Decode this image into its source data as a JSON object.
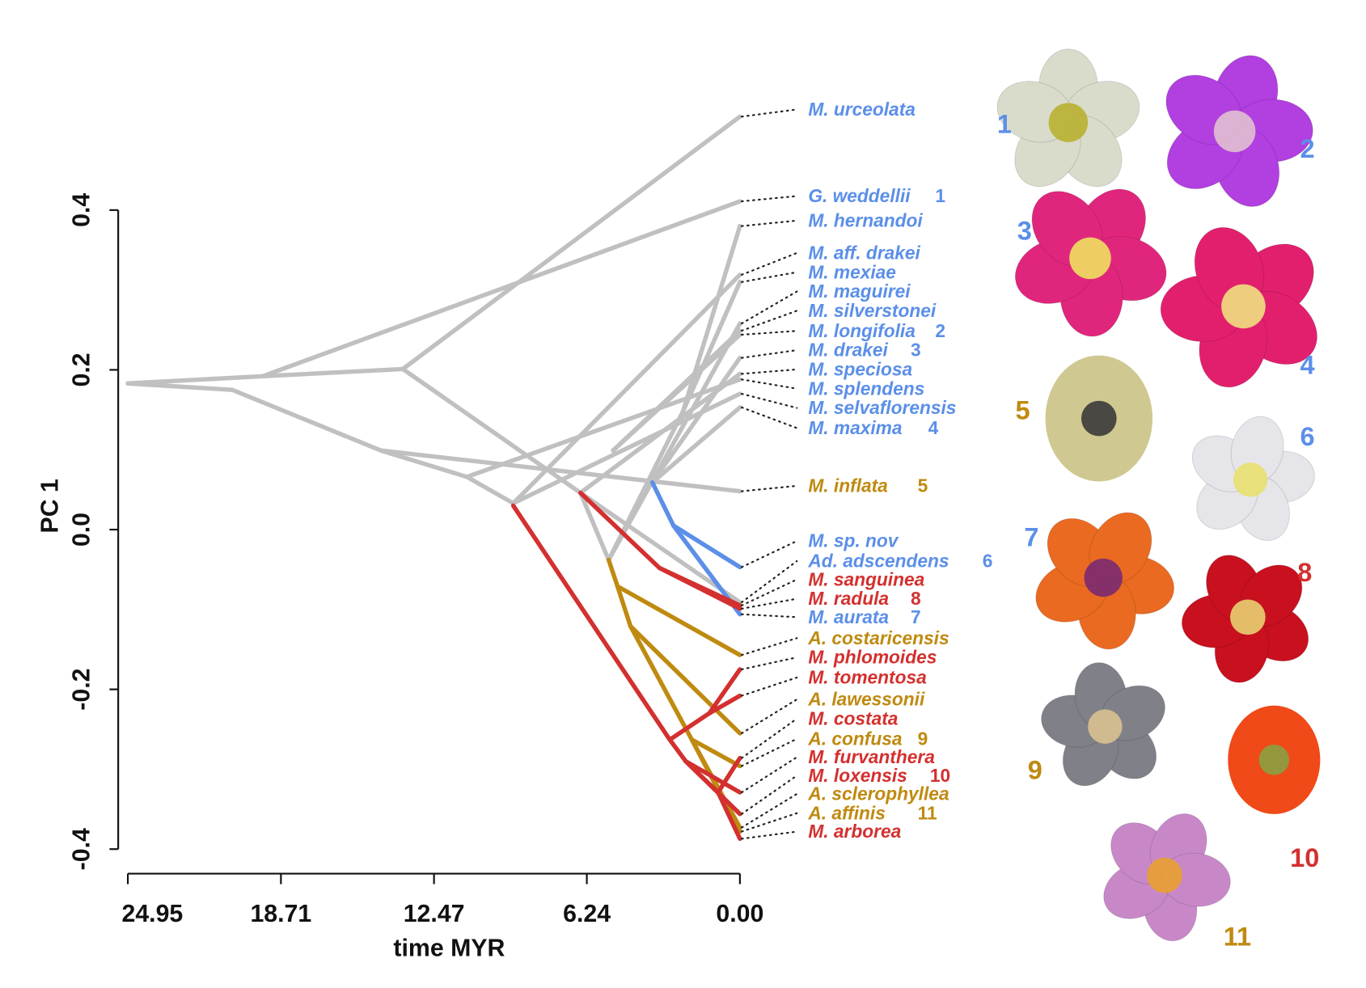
{
  "chart_data": {
    "type": "line",
    "subtype": "traitgram / phylomorphospace",
    "xlabel": "time MYR",
    "ylabel": "PC 1",
    "xlim": [
      24.95,
      0.0
    ],
    "ylim": [
      -0.4,
      0.4
    ],
    "x_ticks": [
      "24.95",
      "18.71",
      "12.47",
      "6.24",
      "0.00"
    ],
    "x_tick_values": [
      24.95,
      18.71,
      12.47,
      6.24,
      0.0
    ],
    "y_ticks": [
      "0.4",
      "0.2",
      "0.0",
      "-0.2",
      "-0.4"
    ],
    "y_tick_values": [
      0.4,
      0.2,
      0.0,
      -0.2,
      -0.4
    ],
    "grid": false,
    "colors": {
      "other": "#c0c0c0",
      "blue": "#5b8fe8",
      "gold": "#bf8a10",
      "red": "#d3302f"
    },
    "edges": [
      {
        "group": "other",
        "from": [
          24.95,
          0.183
        ],
        "to": [
          19.45,
          0.192
        ]
      },
      {
        "group": "other",
        "from": [
          24.95,
          0.183
        ],
        "to": [
          20.7,
          0.175
        ]
      },
      {
        "group": "other",
        "from": [
          19.45,
          0.192
        ],
        "to": [
          13.74,
          0.201
        ]
      },
      {
        "group": "other",
        "from": [
          19.45,
          0.192
        ],
        "to": [
          0,
          0.411
        ]
      },
      {
        "group": "other",
        "from": [
          13.74,
          0.201
        ],
        "to": [
          0,
          0.517
        ]
      },
      {
        "group": "other",
        "from": [
          13.74,
          0.201
        ],
        "to": [
          6.5,
          0.046
        ]
      },
      {
        "group": "other",
        "from": [
          20.7,
          0.175
        ],
        "to": [
          14.63,
          0.099
        ]
      },
      {
        "group": "other",
        "from": [
          14.63,
          0.099
        ],
        "to": [
          0,
          0.048
        ]
      },
      {
        "group": "other",
        "from": [
          14.63,
          0.099
        ],
        "to": [
          11.13,
          0.066
        ]
      },
      {
        "group": "other",
        "from": [
          11.13,
          0.066
        ],
        "to": [
          9.24,
          0.033
        ]
      },
      {
        "group": "other",
        "from": [
          11.13,
          0.066
        ],
        "to": [
          0,
          0.188
        ]
      },
      {
        "group": "other",
        "from": [
          9.24,
          0.033
        ],
        "to": [
          0,
          0.319
        ]
      },
      {
        "group": "other",
        "from": [
          9.24,
          0.033
        ],
        "to": [
          0,
          0.17
        ]
      },
      {
        "group": "other",
        "from": [
          6.5,
          0.046
        ],
        "to": [
          5.35,
          -0.038
        ]
      },
      {
        "group": "other",
        "from": [
          6.5,
          0.046
        ],
        "to": [
          0,
          -0.091
        ]
      },
      {
        "group": "other",
        "from": [
          6.5,
          0.046
        ],
        "to": [
          0,
          0.195
        ]
      },
      {
        "group": "other",
        "from": [
          5.35,
          -0.038
        ],
        "to": [
          2.32,
          0.148
        ]
      },
      {
        "group": "other",
        "from": [
          2.32,
          0.148
        ],
        "to": [
          0,
          0.38
        ]
      },
      {
        "group": "other",
        "from": [
          2.32,
          0.148
        ],
        "to": [
          0,
          0.31
        ]
      },
      {
        "group": "other",
        "from": [
          5.35,
          -0.038
        ],
        "to": [
          0,
          0.258
        ]
      },
      {
        "group": "other",
        "from": [
          3.57,
          0.059
        ],
        "to": [
          0,
          0.153
        ]
      },
      {
        "group": "other",
        "from": [
          5.17,
          0.099
        ],
        "to": [
          0,
          0.249
        ]
      },
      {
        "group": "other",
        "from": [
          5.17,
          0.099
        ],
        "to": [
          0,
          0.244
        ]
      },
      {
        "group": "other",
        "from": [
          3.57,
          0.059
        ],
        "to": [
          0,
          0.215
        ]
      },
      {
        "group": "blue",
        "from": [
          3.57,
          0.059
        ],
        "to": [
          2.71,
          0.005
        ]
      },
      {
        "group": "blue",
        "from": [
          2.71,
          0.005
        ],
        "to": [
          0,
          -0.047
        ]
      },
      {
        "group": "blue",
        "from": [
          2.71,
          0.005
        ],
        "to": [
          0,
          -0.106
        ]
      },
      {
        "group": "red",
        "from": [
          6.5,
          0.046
        ],
        "to": [
          3.28,
          -0.048
        ]
      },
      {
        "group": "red",
        "from": [
          3.28,
          -0.048
        ],
        "to": [
          0,
          -0.095
        ]
      },
      {
        "group": "red",
        "from": [
          3.28,
          -0.048
        ],
        "to": [
          0,
          -0.099
        ]
      },
      {
        "group": "red",
        "from": [
          9.24,
          0.03
        ],
        "to": [
          2.86,
          -0.263
        ]
      },
      {
        "group": "red",
        "from": [
          2.86,
          -0.263
        ],
        "to": [
          2.21,
          -0.29
        ]
      },
      {
        "group": "red",
        "from": [
          2.21,
          -0.29
        ],
        "to": [
          0,
          -0.329
        ]
      },
      {
        "group": "red",
        "from": [
          2.21,
          -0.29
        ],
        "to": [
          0,
          -0.356
        ]
      },
      {
        "group": "red",
        "from": [
          2.86,
          -0.263
        ],
        "to": [
          1.25,
          -0.23
        ]
      },
      {
        "group": "red",
        "from": [
          1.25,
          -0.23
        ],
        "to": [
          0,
          -0.175
        ]
      },
      {
        "group": "red",
        "from": [
          1.25,
          -0.23
        ],
        "to": [
          0,
          -0.208
        ]
      },
      {
        "group": "red",
        "from": [
          2.21,
          -0.29
        ],
        "to": [
          0.89,
          -0.329
        ]
      },
      {
        "group": "red",
        "from": [
          0.89,
          -0.329
        ],
        "to": [
          0,
          -0.387
        ]
      },
      {
        "group": "red",
        "from": [
          0.89,
          -0.329
        ],
        "to": [
          0,
          -0.286
        ]
      },
      {
        "group": "gold",
        "from": [
          5.35,
          -0.038
        ],
        "to": [
          4.99,
          -0.071
        ]
      },
      {
        "group": "gold",
        "from": [
          4.99,
          -0.071
        ],
        "to": [
          0,
          -0.157
        ]
      },
      {
        "group": "gold",
        "from": [
          4.99,
          -0.071
        ],
        "to": [
          4.46,
          -0.121
        ]
      },
      {
        "group": "gold",
        "from": [
          4.46,
          -0.121
        ],
        "to": [
          0,
          -0.255
        ]
      },
      {
        "group": "gold",
        "from": [
          4.46,
          -0.121
        ],
        "to": [
          1.96,
          -0.263
        ]
      },
      {
        "group": "gold",
        "from": [
          1.96,
          -0.263
        ],
        "to": [
          0,
          -0.296
        ]
      },
      {
        "group": "gold",
        "from": [
          1.96,
          -0.263
        ],
        "to": [
          0,
          -0.373
        ]
      },
      {
        "group": "gold",
        "from": [
          1.96,
          -0.263
        ],
        "to": [
          0,
          -0.378
        ]
      }
    ],
    "tips": [
      {
        "label": "M. urceolata",
        "value": 0.517,
        "group": "blue",
        "num": ""
      },
      {
        "label": "G. weddellii",
        "value": 0.411,
        "group": "blue",
        "num": "1"
      },
      {
        "label": "M. hernandoi",
        "value": 0.38,
        "group": "blue",
        "num": ""
      },
      {
        "label": "M. aff. drakei",
        "value": 0.319,
        "group": "blue",
        "num": ""
      },
      {
        "label": "M. mexiae",
        "value": 0.31,
        "group": "blue",
        "num": ""
      },
      {
        "label": "M. maguirei",
        "value": 0.258,
        "group": "blue",
        "num": ""
      },
      {
        "label": "M. silverstonei",
        "value": 0.249,
        "group": "blue",
        "num": ""
      },
      {
        "label": "M. longifolia",
        "value": 0.244,
        "group": "blue",
        "num": "2"
      },
      {
        "label": "M. drakei",
        "value": 0.215,
        "group": "blue",
        "num": "3"
      },
      {
        "label": "M. speciosa",
        "value": 0.195,
        "group": "blue",
        "num": ""
      },
      {
        "label": "M. splendens",
        "value": 0.188,
        "group": "blue",
        "num": ""
      },
      {
        "label": "M. selvaflorensis",
        "value": 0.17,
        "group": "blue",
        "num": ""
      },
      {
        "label": "M. maxima",
        "value": 0.153,
        "group": "blue",
        "num": "4"
      },
      {
        "label": "M. inflata",
        "value": 0.048,
        "group": "gold",
        "num": "5"
      },
      {
        "label": "M. sp. nov",
        "value": -0.047,
        "group": "blue",
        "num": ""
      },
      {
        "label": "Ad. adscendens",
        "value": -0.091,
        "group": "blue",
        "num": "6"
      },
      {
        "label": "M. sanguinea",
        "value": -0.095,
        "group": "red",
        "num": ""
      },
      {
        "label": "M. radula",
        "value": -0.099,
        "group": "red",
        "num": "8"
      },
      {
        "label": "M. aurata",
        "value": -0.106,
        "group": "blue",
        "num": "7"
      },
      {
        "label": "A. costaricensis",
        "value": -0.157,
        "group": "gold",
        "num": ""
      },
      {
        "label": "M. phlomoides",
        "value": -0.175,
        "group": "red",
        "num": ""
      },
      {
        "label": "M. tomentosa",
        "value": -0.208,
        "group": "red",
        "num": ""
      },
      {
        "label": "A. lawessonii",
        "value": -0.255,
        "group": "gold",
        "num": ""
      },
      {
        "label": "M. costata",
        "value": -0.286,
        "group": "red",
        "num": ""
      },
      {
        "label": "A. confusa",
        "value": -0.296,
        "group": "gold",
        "num": "9"
      },
      {
        "label": "M. furvanthera",
        "value": -0.329,
        "group": "red",
        "num": ""
      },
      {
        "label": "M. loxensis",
        "value": -0.356,
        "group": "red",
        "num": "10"
      },
      {
        "label": "A. sclerophyllea",
        "value": -0.373,
        "group": "gold",
        "num": ""
      },
      {
        "label": "A. affinis",
        "value": -0.378,
        "group": "gold",
        "num": "11"
      },
      {
        "label": "M. arborea",
        "value": -0.387,
        "group": "red",
        "num": ""
      }
    ]
  },
  "flowers": [
    {
      "num": "1",
      "group": "blue",
      "petal": "#d9dccb",
      "center": "#b8b030"
    },
    {
      "num": "2",
      "group": "blue",
      "petal": "#b23fe0",
      "center": "#e0c0d0"
    },
    {
      "num": "3",
      "group": "blue",
      "petal": "#e0267c",
      "center": "#f0e060"
    },
    {
      "num": "4",
      "group": "blue",
      "petal": "#e21f6d",
      "center": "#f0e080"
    },
    {
      "num": "5",
      "group": "gold",
      "petal": "#cfc891",
      "center": "#3a3a3a"
    },
    {
      "num": "6",
      "group": "blue",
      "petal": "#e6e6ea",
      "center": "#e8e070"
    },
    {
      "num": "7",
      "group": "blue",
      "petal": "#ea6a22",
      "center": "#7a2a70"
    },
    {
      "num": "8",
      "group": "red",
      "petal": "#c8101f",
      "center": "#e8d070"
    },
    {
      "num": "9",
      "group": "gold",
      "petal": "#808088",
      "center": "#d8c090"
    },
    {
      "num": "10",
      "group": "red",
      "petal": "#ef4a18",
      "center": "#8aa040"
    },
    {
      "num": "11",
      "group": "gold",
      "petal": "#c888c8",
      "center": "#e8a030"
    }
  ]
}
